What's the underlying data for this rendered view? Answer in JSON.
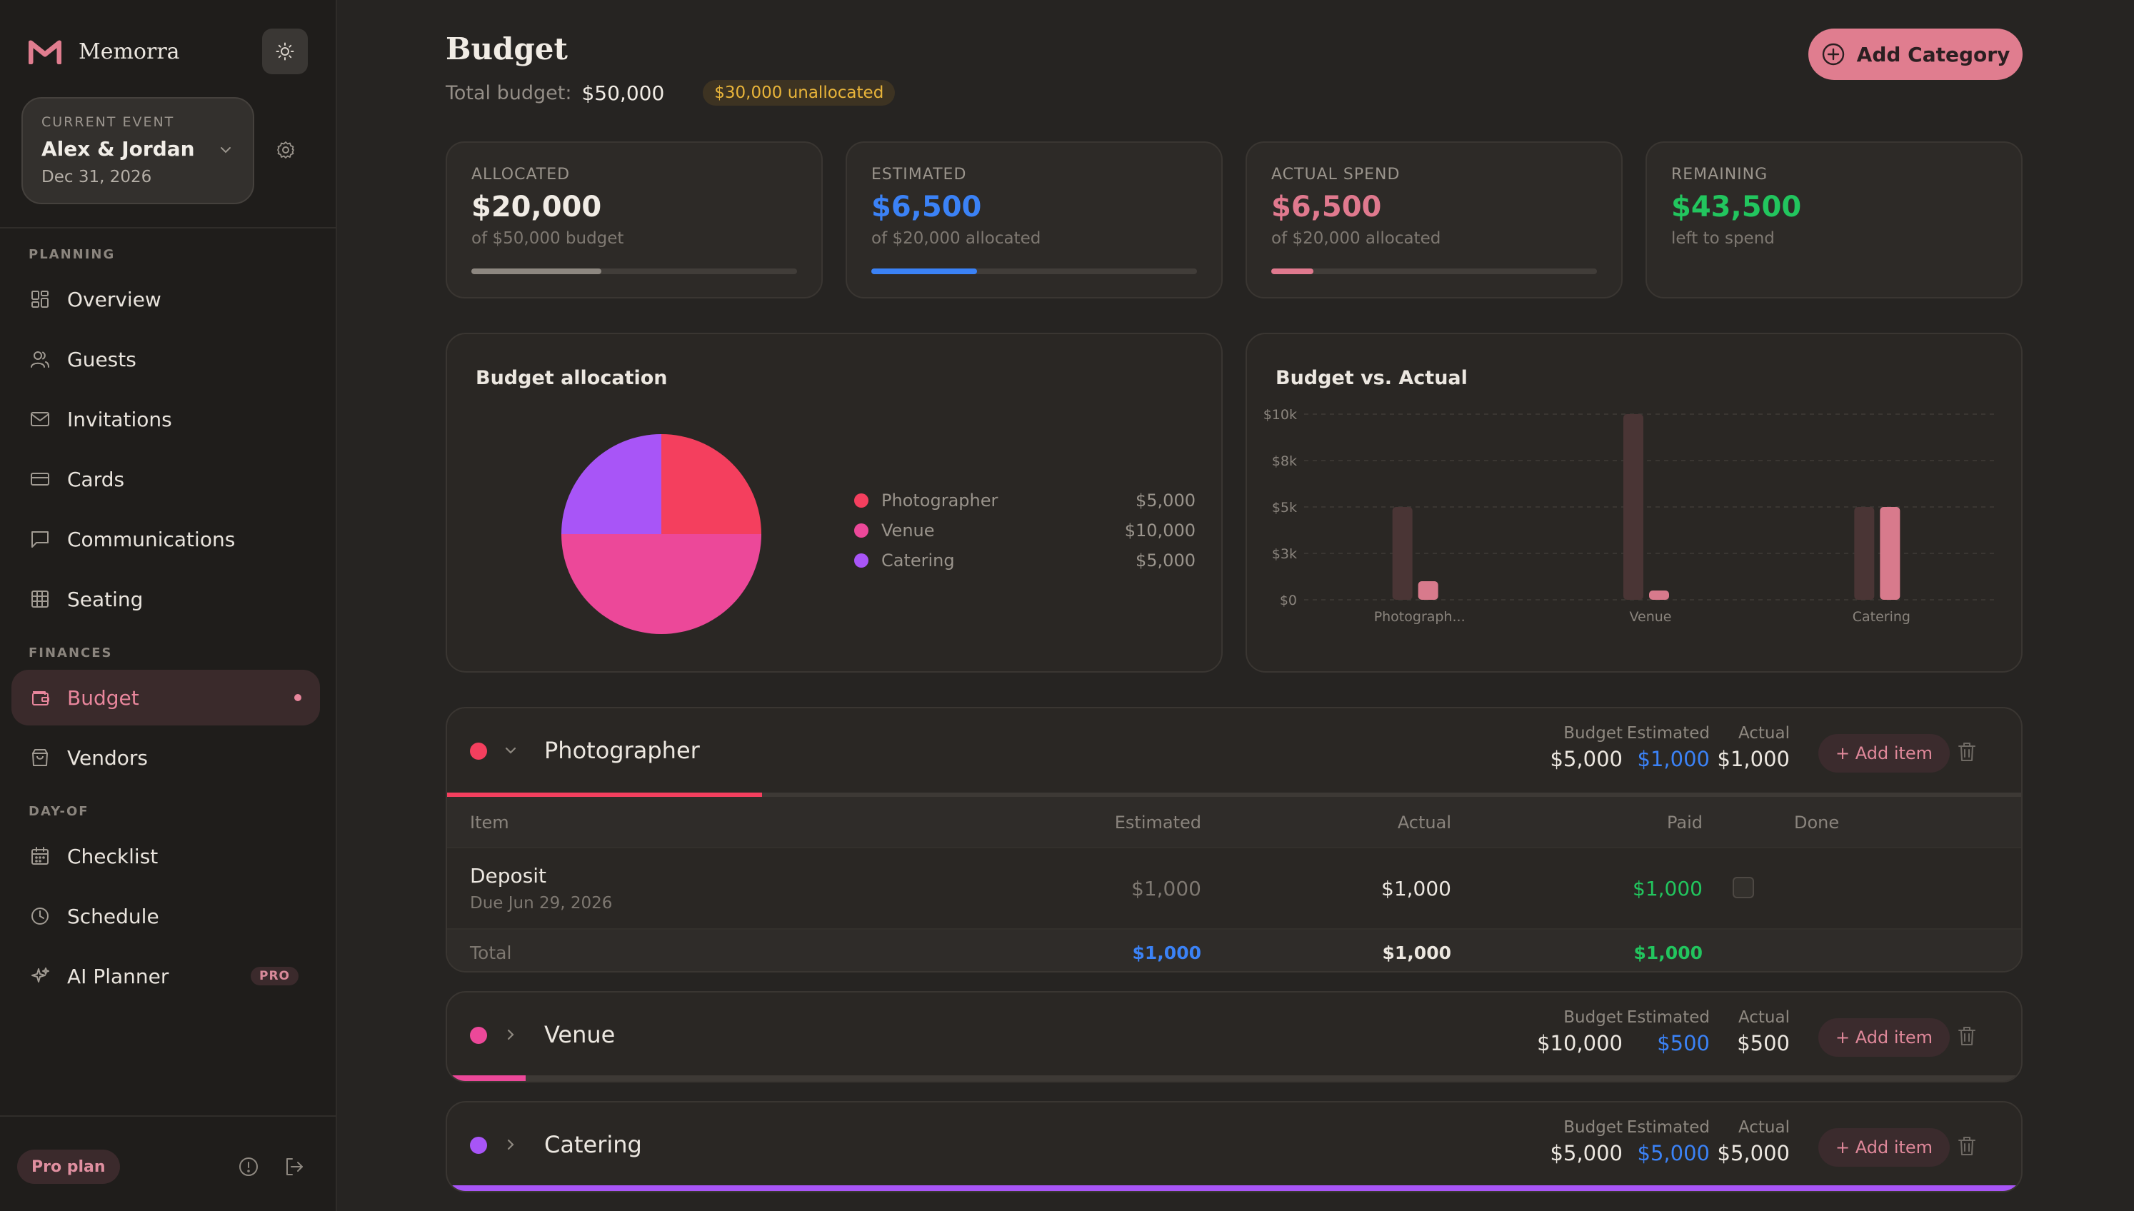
{
  "brand": {
    "name": "Memorra"
  },
  "event": {
    "label": "CURRENT EVENT",
    "name": "Alex & Jordan",
    "date": "Dec 31, 2026"
  },
  "nav": {
    "planning_label": "PLANNING",
    "finances_label": "FINANCES",
    "dayof_label": "DAY-OF",
    "overview": "Overview",
    "guests": "Guests",
    "invitations": "Invitations",
    "cards": "Cards",
    "communications": "Communications",
    "seating": "Seating",
    "budget": "Budget",
    "vendors": "Vendors",
    "checklist": "Checklist",
    "schedule": "Schedule",
    "ai_planner": "AI Planner",
    "pro_badge": "PRO"
  },
  "footer": {
    "plan": "Pro plan"
  },
  "header": {
    "title": "Budget",
    "total_label": "Total budget:",
    "total_value": "$50,000",
    "unallocated": "$30,000 unallocated",
    "add_category": "Add Category"
  },
  "stats": {
    "allocated": {
      "label": "ALLOCATED",
      "value": "$20,000",
      "sub": "of $50,000 budget",
      "progress": 0.4,
      "color": "#8d8780"
    },
    "estimated": {
      "label": "ESTIMATED",
      "value": "$6,500",
      "sub": "of $20,000 allocated",
      "progress": 0.325,
      "color": "#3b82f6"
    },
    "actual": {
      "label": "ACTUAL SPEND",
      "value": "$6,500",
      "sub": "of $20,000 allocated",
      "progress": 0.13,
      "color": "#e0798e"
    },
    "remaining": {
      "label": "REMAINING",
      "value": "$43,500",
      "sub": "left to spend",
      "color": "#22c55e"
    }
  },
  "allocation_panel": {
    "title": "Budget allocation"
  },
  "comparison_panel": {
    "title": "Budget vs. Actual"
  },
  "chart_data": [
    {
      "type": "pie",
      "title": "Budget allocation",
      "categories": [
        "Photographer",
        "Venue",
        "Catering"
      ],
      "labels": [
        "$5,000",
        "$10,000",
        "$5,000"
      ],
      "values": [
        5000,
        10000,
        5000
      ],
      "colors": [
        "#f43f5e",
        "#ec4899",
        "#a855f7"
      ],
      "legend": "right"
    },
    {
      "type": "bar",
      "title": "Budget vs. Actual",
      "categories": [
        "Photograph...",
        "Venue",
        "Catering"
      ],
      "series": [
        {
          "values": [
            5000,
            10000,
            5000
          ],
          "color": "#4a3535"
        },
        {
          "values": [
            1000,
            500,
            5000
          ],
          "color": "#d87a8c"
        }
      ],
      "yticks": [
        "$0",
        "$3k",
        "$5k",
        "$8k",
        "$10k"
      ],
      "ytick_values": [
        0,
        2500,
        5000,
        7500,
        10000
      ],
      "ylim": [
        0,
        10000
      ],
      "grid": true
    }
  ],
  "categories": [
    {
      "name": "Photographer",
      "color": "#f43f5e",
      "expanded": true,
      "budget_label": "Budget",
      "budget": "$5,000",
      "estimated_label": "Estimated",
      "estimated": "$1,000",
      "actual_label": "Actual",
      "actual": "$1,000",
      "add_item": "+ Add item",
      "progress": 0.2
    },
    {
      "name": "Venue",
      "color": "#ec4899",
      "expanded": false,
      "budget_label": "Budget",
      "budget": "$10,000",
      "estimated_label": "Estimated",
      "estimated": "$500",
      "actual_label": "Actual",
      "actual": "$500",
      "add_item": "+ Add item",
      "progress": 0.05
    },
    {
      "name": "Catering",
      "color": "#a855f7",
      "expanded": false,
      "budget_label": "Budget",
      "budget": "$5,000",
      "estimated_label": "Estimated",
      "estimated": "$5,000",
      "actual_label": "Actual",
      "actual": "$5,000",
      "add_item": "+ Add item",
      "progress": 1.0
    }
  ],
  "items_table": {
    "headers": {
      "item": "Item",
      "estimated": "Estimated",
      "actual": "Actual",
      "paid": "Paid",
      "done": "Done"
    },
    "rows": [
      {
        "name": "Deposit",
        "due": "Due Jun 29, 2026",
        "estimated": "$1,000",
        "actual": "$1,000",
        "paid": "$1,000",
        "done": false
      }
    ],
    "total": {
      "label": "Total",
      "estimated": "$1,000",
      "actual": "$1,000",
      "paid": "$1,000"
    }
  }
}
